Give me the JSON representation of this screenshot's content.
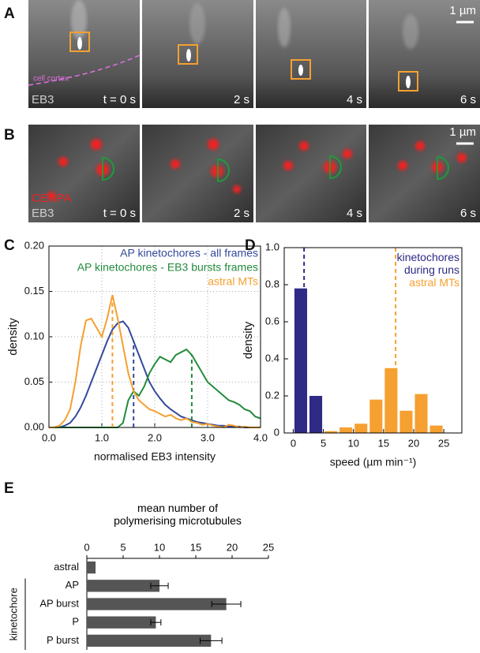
{
  "panel_a": {
    "letter": "A",
    "scale": "1 µm",
    "annotation": "cell cortex",
    "stain": "EB3",
    "times": [
      "t = 0 s",
      "2 s",
      "4 s",
      "6 s"
    ]
  },
  "panel_b": {
    "letter": "B",
    "scale": "1 µm",
    "stains": [
      "CENPA",
      "EB3"
    ],
    "times": [
      "t = 0 s",
      "2 s",
      "4 s",
      "6 s"
    ]
  },
  "chart_data": [
    {
      "letter": "C",
      "type": "line",
      "xlabel": "normalised EB3 intensity",
      "ylabel": "density",
      "xlim": [
        0,
        4
      ],
      "ylim": [
        0,
        0.2
      ],
      "xticks": [
        {
          "value": 0,
          "label": "0.0"
        },
        {
          "value": 1,
          "label": "1.0"
        },
        {
          "value": 2,
          "label": "2.0"
        },
        {
          "value": 3,
          "label": "3.0"
        },
        {
          "value": 4,
          "label": "4.0"
        }
      ],
      "yticks": [
        {
          "value": 0,
          "label": "0.00"
        },
        0.05,
        {
          "value": 0.1,
          "label": "0.10"
        },
        0.15,
        {
          "value": 0.2,
          "label": "0.20"
        }
      ],
      "grid": true,
      "x": [
        0,
        0.1,
        0.2,
        0.3,
        0.4,
        0.5,
        0.6,
        0.7,
        0.8,
        0.9,
        1.0,
        1.1,
        1.2,
        1.3,
        1.4,
        1.5,
        1.6,
        1.7,
        1.8,
        1.9,
        2.0,
        2.1,
        2.2,
        2.3,
        2.4,
        2.5,
        2.6,
        2.7,
        2.8,
        2.9,
        3.0,
        3.1,
        3.2,
        3.3,
        3.4,
        3.5,
        3.6,
        3.7,
        3.8,
        3.9,
        4.0
      ],
      "series": [
        {
          "name": "AP kinetochores - all frames",
          "color": "#34499c",
          "dash_x": 1.6,
          "values": [
            0,
            0,
            0,
            0.002,
            0.005,
            0.012,
            0.022,
            0.035,
            0.05,
            0.065,
            0.08,
            0.095,
            0.108,
            0.115,
            0.117,
            0.11,
            0.095,
            0.08,
            0.065,
            0.05,
            0.04,
            0.032,
            0.025,
            0.02,
            0.016,
            0.012,
            0.01,
            0.008,
            0.006,
            0.005,
            0.004,
            0.003,
            0.002,
            0.002,
            0.001,
            0.001,
            0.001,
            0,
            0,
            0,
            0
          ]
        },
        {
          "name": "AP kinetochores - EB3 bursts frames",
          "color": "#238b3d",
          "dash_x": 2.7,
          "values": [
            0,
            0,
            0,
            0,
            0,
            0,
            0,
            0,
            0,
            0,
            0,
            0,
            0,
            0,
            0.005,
            0.03,
            0.04,
            0.035,
            0.045,
            0.06,
            0.07,
            0.078,
            0.075,
            0.072,
            0.08,
            0.083,
            0.086,
            0.08,
            0.07,
            0.06,
            0.05,
            0.045,
            0.04,
            0.035,
            0.03,
            0.028,
            0.025,
            0.02,
            0.018,
            0.012,
            0.01
          ]
        },
        {
          "name": "astral MTs",
          "color": "#f5a030",
          "dash_x": 1.2,
          "values": [
            0,
            0,
            0.002,
            0.008,
            0.02,
            0.05,
            0.09,
            0.118,
            0.12,
            0.11,
            0.1,
            0.12,
            0.146,
            0.12,
            0.09,
            0.06,
            0.04,
            0.03,
            0.025,
            0.02,
            0.018,
            0.015,
            0.012,
            0.014,
            0.01,
            0.008,
            0.01,
            0.006,
            0.005,
            0.003,
            0.004,
            0.002,
            0.001,
            0,
            0.003,
            0.002,
            0,
            0.001,
            0,
            0,
            0
          ]
        }
      ]
    },
    {
      "letter": "D",
      "type": "histogram",
      "xlabel": "speed (µm min⁻¹)",
      "ylabel": "density",
      "xlim": [
        -1.5,
        28
      ],
      "ylim": [
        0,
        1
      ],
      "xticks": [
        0,
        5,
        10,
        15,
        20,
        25
      ],
      "yticks": [
        0,
        0.2,
        0.4,
        0.6,
        0.8,
        {
          "value": 1,
          "label": "1.0"
        }
      ],
      "series": [
        {
          "name": "kinetochores during runs",
          "color": "#2e2a85",
          "dash_x": 1.8,
          "bins": [
            0,
            2.5,
            5
          ],
          "values": [
            0.78,
            0.2
          ]
        },
        {
          "name": "astral MTs",
          "color": "#f5a030",
          "dash_x": 17,
          "bins": [
            5,
            7.5,
            10,
            12.5,
            15,
            17.5,
            20,
            22.5,
            25
          ],
          "values": [
            0.01,
            0.03,
            0.05,
            0.18,
            0.35,
            0.12,
            0.21,
            0.04
          ]
        }
      ]
    },
    {
      "letter": "E",
      "type": "hbar",
      "title": "mean number of polymerising microtubules",
      "group_label": "kinetochore",
      "xlim": [
        0,
        25
      ],
      "xticks": [
        0,
        5,
        10,
        15,
        20,
        25
      ],
      "color": "#555555",
      "categories": [
        "astral",
        "AP",
        "AP burst",
        "P",
        "P burst"
      ],
      "values": [
        1.2,
        10,
        19.2,
        9.5,
        17.1
      ],
      "errors": [
        null,
        1.2,
        2,
        0.7,
        1.5
      ]
    }
  ]
}
